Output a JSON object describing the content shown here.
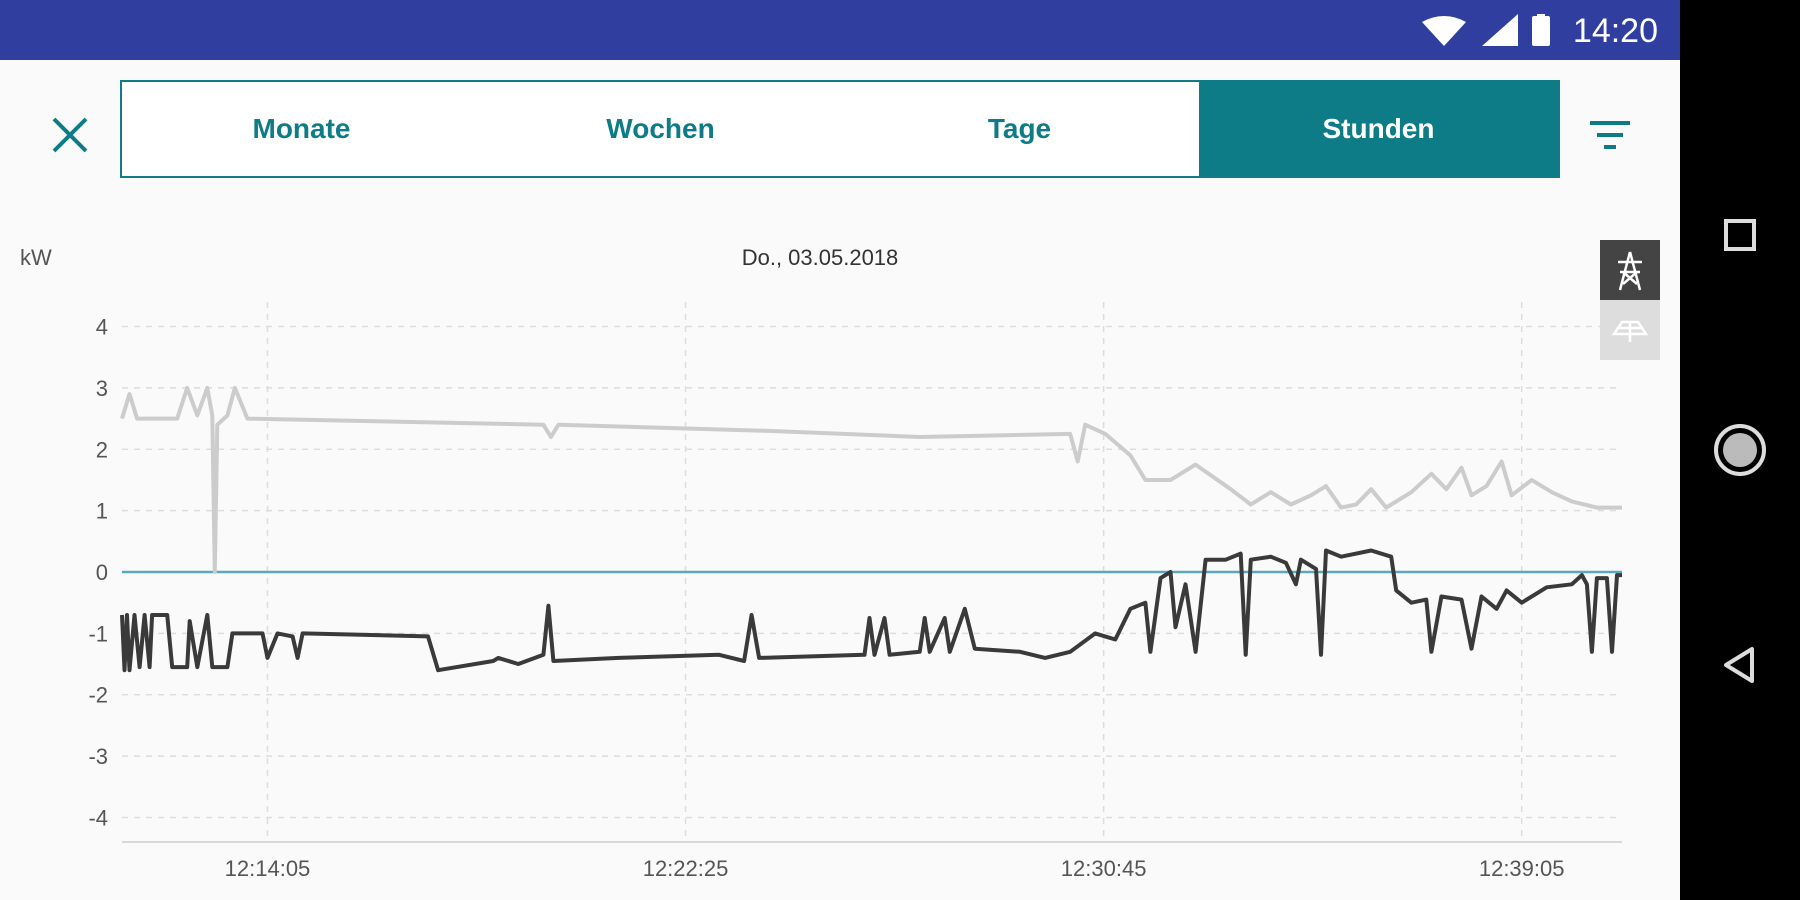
{
  "status_bar": {
    "time": "14:20"
  },
  "tabs": [
    {
      "label": "Monate",
      "active": false
    },
    {
      "label": "Wochen",
      "active": false
    },
    {
      "label": "Tage",
      "active": false
    },
    {
      "label": "Stunden",
      "active": true
    }
  ],
  "colors": {
    "status_bar": "#303f9f",
    "accent": "#0e7c86",
    "grid_series": "#cccccc",
    "solar_series": "#3a3a3a",
    "zero_line": "#5aa9b8"
  },
  "icons": {
    "close": "close-icon",
    "filter": "filter-icon",
    "grid": "power-tower-icon",
    "solar": "solar-panel-icon"
  },
  "chart_data": {
    "type": "line",
    "title": "Do., 03.05.2018",
    "ylabel": "kW",
    "ylim": [
      -4.4,
      4.4
    ],
    "yticks": [
      4,
      3,
      2,
      1,
      0,
      -1,
      -2,
      -3,
      -4
    ],
    "xticks": [
      "12:14:05",
      "12:22:25",
      "12:30:45",
      "12:39:05"
    ],
    "xrange_minutes": [
      -2.9,
      27.0
    ],
    "xtick_minutes": [
      0,
      8.333,
      16.667,
      25.0
    ],
    "series": [
      {
        "color": "#cccccc",
        "points": [
          [
            -2.9,
            2.5
          ],
          [
            -2.75,
            2.9
          ],
          [
            -2.6,
            2.5
          ],
          [
            -1.8,
            2.5
          ],
          [
            -1.6,
            3.0
          ],
          [
            -1.4,
            2.55
          ],
          [
            -1.2,
            3.0
          ],
          [
            -1.1,
            2.55
          ],
          [
            -1.05,
            0.0
          ],
          [
            -1.0,
            2.4
          ],
          [
            -0.8,
            2.55
          ],
          [
            -0.65,
            3.0
          ],
          [
            -0.4,
            2.5
          ],
          [
            5.5,
            2.4
          ],
          [
            5.65,
            2.2
          ],
          [
            5.8,
            2.4
          ],
          [
            10.0,
            2.3
          ],
          [
            13.0,
            2.2
          ],
          [
            16.0,
            2.25
          ],
          [
            16.15,
            1.8
          ],
          [
            16.3,
            2.4
          ],
          [
            16.7,
            2.25
          ],
          [
            17.2,
            1.9
          ],
          [
            17.5,
            1.5
          ],
          [
            18.0,
            1.5
          ],
          [
            18.5,
            1.75
          ],
          [
            19.2,
            1.35
          ],
          [
            19.6,
            1.1
          ],
          [
            20.0,
            1.3
          ],
          [
            20.4,
            1.1
          ],
          [
            20.8,
            1.25
          ],
          [
            21.1,
            1.4
          ],
          [
            21.4,
            1.05
          ],
          [
            21.7,
            1.1
          ],
          [
            22.0,
            1.35
          ],
          [
            22.3,
            1.05
          ],
          [
            22.8,
            1.3
          ],
          [
            23.2,
            1.6
          ],
          [
            23.5,
            1.35
          ],
          [
            23.8,
            1.7
          ],
          [
            24.0,
            1.25
          ],
          [
            24.3,
            1.4
          ],
          [
            24.6,
            1.8
          ],
          [
            24.8,
            1.25
          ],
          [
            25.2,
            1.5
          ],
          [
            25.6,
            1.3
          ],
          [
            26.0,
            1.15
          ],
          [
            26.5,
            1.05
          ],
          [
            27.0,
            1.05
          ]
        ]
      },
      {
        "color": "#3a3a3a",
        "points": [
          [
            -2.9,
            -0.7
          ],
          [
            -2.85,
            -1.6
          ],
          [
            -2.8,
            -0.7
          ],
          [
            -2.75,
            -1.6
          ],
          [
            -2.65,
            -0.7
          ],
          [
            -2.55,
            -1.55
          ],
          [
            -2.45,
            -0.7
          ],
          [
            -2.35,
            -1.55
          ],
          [
            -2.3,
            -0.7
          ],
          [
            -2.0,
            -0.7
          ],
          [
            -1.9,
            -1.55
          ],
          [
            -1.6,
            -1.55
          ],
          [
            -1.55,
            -0.8
          ],
          [
            -1.4,
            -1.55
          ],
          [
            -1.2,
            -0.7
          ],
          [
            -1.1,
            -1.55
          ],
          [
            -0.8,
            -1.55
          ],
          [
            -0.7,
            -1.0
          ],
          [
            -0.1,
            -1.0
          ],
          [
            0.0,
            -1.4
          ],
          [
            0.2,
            -1.0
          ],
          [
            0.5,
            -1.05
          ],
          [
            0.6,
            -1.4
          ],
          [
            0.7,
            -1.0
          ],
          [
            3.2,
            -1.05
          ],
          [
            3.4,
            -1.6
          ],
          [
            4.5,
            -1.45
          ],
          [
            4.6,
            -1.4
          ],
          [
            5.0,
            -1.5
          ],
          [
            5.5,
            -1.35
          ],
          [
            5.6,
            -0.55
          ],
          [
            5.7,
            -1.45
          ],
          [
            7.0,
            -1.4
          ],
          [
            9.0,
            -1.35
          ],
          [
            9.5,
            -1.45
          ],
          [
            9.65,
            -0.7
          ],
          [
            9.8,
            -1.4
          ],
          [
            11.9,
            -1.35
          ],
          [
            12.0,
            -0.75
          ],
          [
            12.1,
            -1.35
          ],
          [
            12.3,
            -0.75
          ],
          [
            12.4,
            -1.35
          ],
          [
            13.0,
            -1.3
          ],
          [
            13.1,
            -0.75
          ],
          [
            13.2,
            -1.3
          ],
          [
            13.5,
            -0.75
          ],
          [
            13.6,
            -1.3
          ],
          [
            13.9,
            -0.6
          ],
          [
            14.1,
            -1.25
          ],
          [
            15.0,
            -1.3
          ],
          [
            15.5,
            -1.4
          ],
          [
            16.0,
            -1.3
          ],
          [
            16.5,
            -1.0
          ],
          [
            16.9,
            -1.1
          ],
          [
            17.2,
            -0.6
          ],
          [
            17.5,
            -0.5
          ],
          [
            17.6,
            -1.3
          ],
          [
            17.8,
            -0.1
          ],
          [
            18.0,
            0.0
          ],
          [
            18.1,
            -0.9
          ],
          [
            18.3,
            -0.2
          ],
          [
            18.5,
            -1.3
          ],
          [
            18.7,
            0.2
          ],
          [
            19.1,
            0.2
          ],
          [
            19.4,
            0.3
          ],
          [
            19.5,
            -1.35
          ],
          [
            19.6,
            0.2
          ],
          [
            20.0,
            0.25
          ],
          [
            20.3,
            0.15
          ],
          [
            20.5,
            -0.2
          ],
          [
            20.6,
            0.2
          ],
          [
            20.9,
            0.05
          ],
          [
            21.0,
            -1.35
          ],
          [
            21.1,
            0.35
          ],
          [
            21.4,
            0.25
          ],
          [
            22.0,
            0.35
          ],
          [
            22.4,
            0.25
          ],
          [
            22.5,
            -0.3
          ],
          [
            22.8,
            -0.5
          ],
          [
            23.1,
            -0.45
          ],
          [
            23.2,
            -1.3
          ],
          [
            23.4,
            -0.4
          ],
          [
            23.8,
            -0.45
          ],
          [
            24.0,
            -1.25
          ],
          [
            24.2,
            -0.4
          ],
          [
            24.5,
            -0.6
          ],
          [
            24.7,
            -0.3
          ],
          [
            25.0,
            -0.5
          ],
          [
            25.5,
            -0.25
          ],
          [
            26.0,
            -0.2
          ],
          [
            26.2,
            -0.05
          ],
          [
            26.3,
            -0.2
          ],
          [
            26.4,
            -1.3
          ],
          [
            26.5,
            -0.1
          ],
          [
            26.7,
            -0.1
          ],
          [
            26.8,
            -1.3
          ],
          [
            26.9,
            -0.05
          ],
          [
            27.0,
            -0.05
          ]
        ]
      }
    ]
  }
}
